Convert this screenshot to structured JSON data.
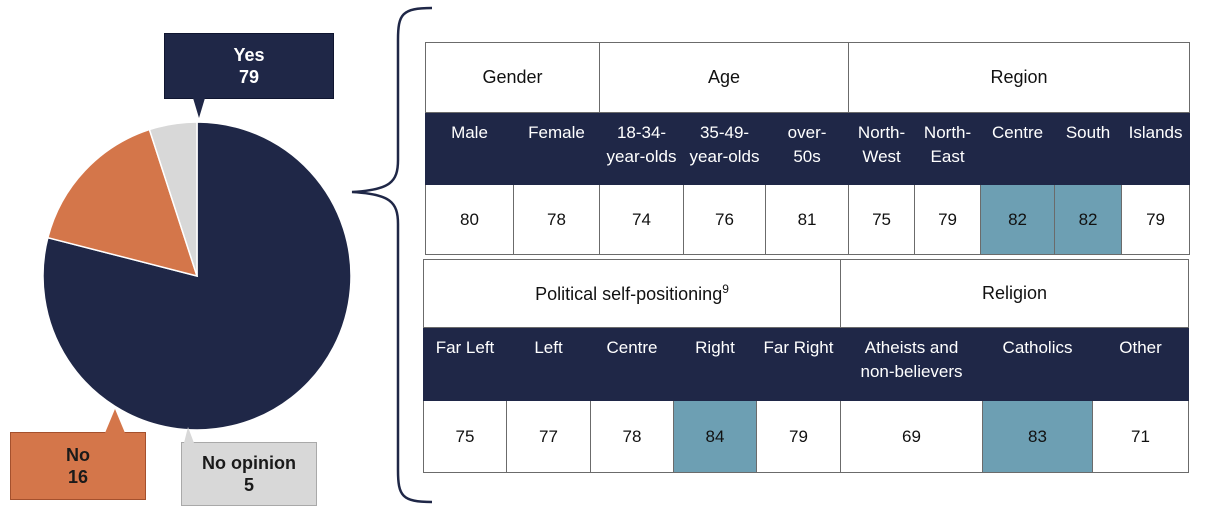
{
  "chart_data": [
    {
      "type": "pie",
      "slices": [
        {
          "label": "Yes",
          "value": 79,
          "color": "#1f2747"
        },
        {
          "label": "No",
          "value": 16,
          "color": "#d4764a"
        },
        {
          "label": "No opinion",
          "value": 5,
          "color": "#d8d8d8"
        }
      ]
    },
    {
      "type": "table",
      "groups": [
        {
          "name": "Gender",
          "columns": [
            "Male",
            "Female"
          ],
          "values": [
            "80",
            "78"
          ],
          "highlight": [
            false,
            false
          ]
        },
        {
          "name": "Age",
          "columns": [
            "18-34-\nyear-olds",
            "35-49-\nyear-olds",
            "over-\n50s"
          ],
          "values": [
            "74",
            "76",
            "81"
          ],
          "highlight": [
            false,
            false,
            false
          ]
        },
        {
          "name": "Region",
          "columns": [
            "North-\nWest",
            "North-\nEast",
            "Centre",
            "South",
            "Islands"
          ],
          "values": [
            "75",
            "79",
            "82",
            "82",
            "79"
          ],
          "highlight": [
            false,
            false,
            true,
            true,
            false
          ]
        }
      ]
    },
    {
      "type": "table",
      "groups": [
        {
          "name": "Political self-positioning",
          "footnote": "9",
          "columns": [
            "Far Left",
            "Left",
            "Centre",
            "Right",
            "Far Right"
          ],
          "values": [
            "75",
            "77",
            "78",
            "84",
            "79"
          ],
          "highlight": [
            false,
            false,
            false,
            true,
            false
          ]
        },
        {
          "name": "Religion",
          "columns": [
            "Atheists and\nnon-believers",
            "Catholics",
            "Other"
          ],
          "values": [
            "69",
            "83",
            "71"
          ],
          "highlight": [
            false,
            true,
            false
          ]
        }
      ]
    }
  ],
  "colors": {
    "highlight": "#6d9fb3",
    "header_bg": "#1f2747"
  }
}
